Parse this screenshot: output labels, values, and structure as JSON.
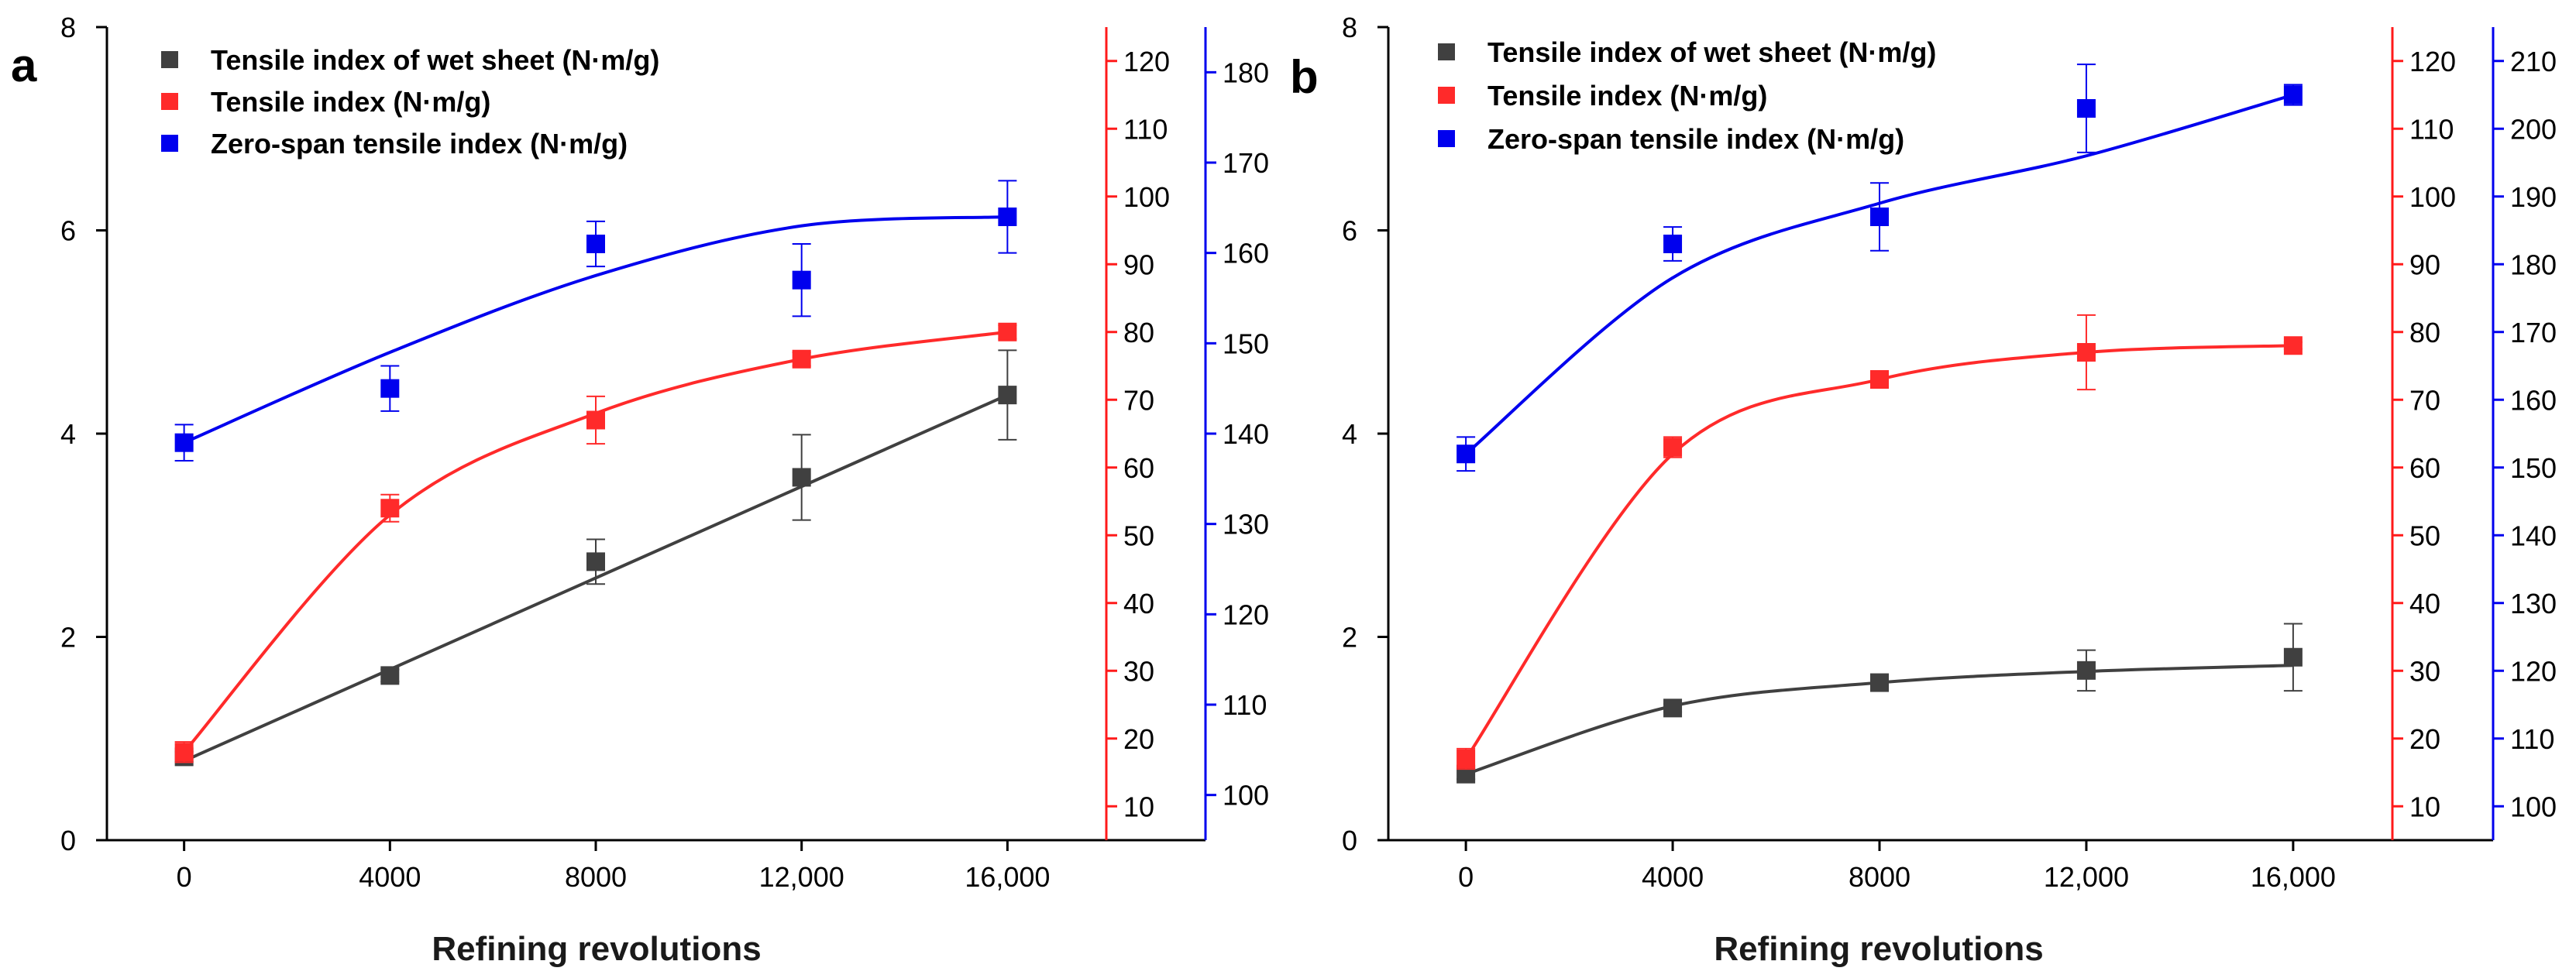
{
  "chart_data": [
    {
      "type": "scatter",
      "panel_label": "a",
      "xlabel": "Refining revolutions",
      "x_ticks": [
        "0",
        "4000",
        "8000",
        "12,000",
        "16,000"
      ],
      "x": [
        0,
        4000,
        8000,
        12000,
        16000
      ],
      "xlim": [
        -1500,
        17500
      ],
      "axes": {
        "left": {
          "ylim": [
            0,
            8
          ],
          "ticks": [
            0,
            2,
            4,
            6,
            8
          ],
          "color": "#000000"
        },
        "red": {
          "ylim": [
            5,
            125
          ],
          "ticks": [
            10,
            20,
            30,
            40,
            50,
            60,
            70,
            80,
            90,
            100,
            110,
            120
          ],
          "color": "#ff1a1a"
        },
        "blue": {
          "ylim": [
            95,
            185
          ],
          "ticks": [
            100,
            110,
            120,
            130,
            140,
            150,
            160,
            170,
            180
          ],
          "color": "#0000ee"
        }
      },
      "series": [
        {
          "name": "Tensile index of wet sheet (N·m/g)",
          "axis": "left",
          "color": "#404040",
          "values": [
            0.82,
            1.62,
            2.74,
            3.57,
            4.38
          ],
          "errors": [
            0.05,
            0.06,
            0.22,
            0.42,
            0.44
          ],
          "fit": [
            0.78,
            1.68,
            2.58,
            3.48,
            4.38
          ]
        },
        {
          "name": "Tensile index (N·m/g)",
          "axis": "red",
          "color": "#ff2a2a",
          "values": [
            18,
            54,
            67,
            76,
            80
          ],
          "errors": [
            1.5,
            2,
            3.5,
            1,
            1
          ],
          "fit": [
            18,
            53,
            68,
            76,
            80
          ]
        },
        {
          "name": "Zero-span tensile index (N·m/g)",
          "axis": "blue",
          "color": "#0000ee",
          "values": [
            139,
            145,
            161,
            157,
            164
          ],
          "errors": [
            2,
            2.5,
            2.5,
            4,
            4
          ],
          "fit": [
            139,
            149,
            157.5,
            163,
            164
          ]
        }
      ]
    },
    {
      "type": "scatter",
      "panel_label": "b",
      "xlabel": "Refining revolutions",
      "x_ticks": [
        "0",
        "4000",
        "8000",
        "12,000",
        "16,000"
      ],
      "x": [
        0,
        4000,
        8000,
        12000,
        16000
      ],
      "xlim": [
        -1500,
        17500
      ],
      "axes": {
        "left": {
          "ylim": [
            0,
            8
          ],
          "ticks": [
            0,
            2,
            4,
            6,
            8
          ],
          "color": "#000000"
        },
        "red": {
          "ylim": [
            5,
            125
          ],
          "ticks": [
            10,
            20,
            30,
            40,
            50,
            60,
            70,
            80,
            90,
            100,
            110,
            120
          ],
          "color": "#ff1a1a"
        },
        "blue": {
          "ylim": [
            95,
            215
          ],
          "ticks": [
            100,
            110,
            120,
            130,
            140,
            150,
            160,
            170,
            180,
            190,
            200,
            210
          ],
          "color": "#0000ee"
        }
      },
      "series": [
        {
          "name": "Tensile index of wet sheet (N·m/g)",
          "axis": "left",
          "color": "#404040",
          "values": [
            0.65,
            1.3,
            1.55,
            1.67,
            1.8
          ],
          "errors": [
            0.05,
            0.04,
            0.06,
            0.2,
            0.33
          ],
          "fit": [
            0.65,
            1.32,
            1.55,
            1.66,
            1.72
          ]
        },
        {
          "name": "Tensile index (N·m/g)",
          "axis": "red",
          "color": "#ff2a2a",
          "values": [
            17,
            63,
            73,
            77,
            78
          ],
          "errors": [
            1.5,
            1.5,
            1,
            5.5,
            0.5
          ],
          "fit": [
            17,
            62,
            73,
            77,
            78
          ]
        },
        {
          "name": "Zero-span tensile index (N·m/g)",
          "axis": "blue",
          "color": "#0000ee",
          "values": [
            152,
            183,
            187,
            203,
            205
          ],
          "errors": [
            2.5,
            2.5,
            5,
            6.5,
            1.5
          ],
          "fit": [
            152,
            178,
            189,
            196,
            205
          ]
        }
      ]
    }
  ]
}
